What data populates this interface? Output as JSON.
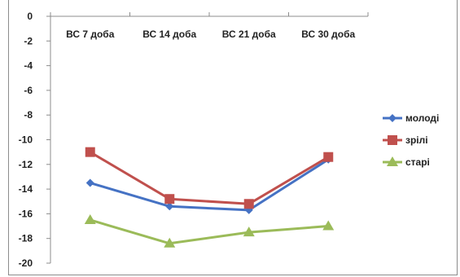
{
  "chart_data": {
    "type": "line",
    "categories": [
      "ВС 7 доба",
      "ВС 14 доба",
      "ВС 21 доба",
      "ВС 30 доба"
    ],
    "ylim": [
      -20,
      0
    ],
    "yticks": [
      0,
      -2,
      -4,
      -6,
      -8,
      -10,
      -12,
      -14,
      -16,
      -18,
      -20
    ],
    "grid": false,
    "legend_position": "right",
    "series": [
      {
        "name": "молоді",
        "values": [
          -13.5,
          -15.4,
          -15.7,
          -11.6
        ],
        "color": "#4572c4",
        "marker": "diamond"
      },
      {
        "name": "зрілі",
        "values": [
          -11.0,
          -14.8,
          -15.2,
          -11.4
        ],
        "color": "#c0504d",
        "marker": "square"
      },
      {
        "name": "старі",
        "values": [
          -16.5,
          -18.4,
          -17.5,
          -17.0
        ],
        "color": "#9bbb59",
        "marker": "triangle"
      }
    ]
  }
}
